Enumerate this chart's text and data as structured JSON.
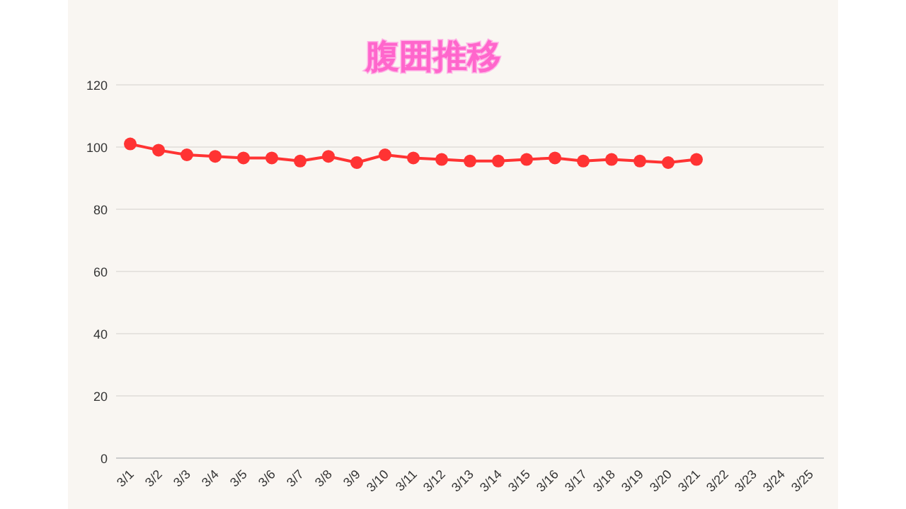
{
  "chart_data": {
    "type": "line",
    "title": "腹囲推移",
    "categories": [
      "3/1",
      "3/2",
      "3/3",
      "3/4",
      "3/5",
      "3/6",
      "3/7",
      "3/8",
      "3/9",
      "3/10",
      "3/11",
      "3/12",
      "3/13",
      "3/14",
      "3/15",
      "3/16",
      "3/17",
      "3/18",
      "3/19",
      "3/20",
      "3/21",
      "3/22",
      "3/23",
      "3/24",
      "3/25"
    ],
    "series": [
      {
        "color": "#ff3333",
        "values": [
          101,
          99,
          97.5,
          97,
          96.5,
          96.5,
          95.5,
          97,
          95,
          97.5,
          96.5,
          96,
          95.5,
          95.5,
          96,
          96.5,
          95.5,
          96,
          95.5,
          95,
          96,
          null,
          null,
          null,
          null
        ]
      }
    ],
    "ylim": [
      0,
      120
    ],
    "yticks": [
      0,
      20,
      40,
      60,
      80,
      100,
      120
    ],
    "grid": "y",
    "marker": "circle",
    "line_style": "solid"
  }
}
